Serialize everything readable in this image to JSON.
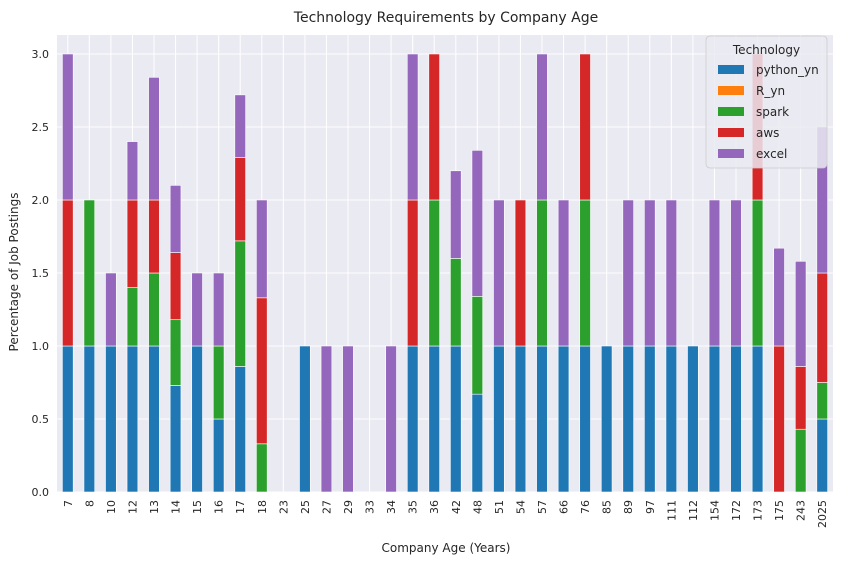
{
  "chart_data": {
    "type": "bar",
    "stacked": true,
    "title": "Technology Requirements by Company Age",
    "xlabel": "Company Age (Years)",
    "ylabel": "Percentage of Job Postings",
    "ylim": [
      0,
      3.13
    ],
    "yticks": [
      0.0,
      0.5,
      1.0,
      1.5,
      2.0,
      2.5,
      3.0
    ],
    "ytick_labels": [
      "0.0",
      "0.5",
      "1.0",
      "1.5",
      "2.0",
      "2.5",
      "3.0"
    ],
    "grid": true,
    "legend_title": "Technology",
    "legend_position": "top-right",
    "categories": [
      "7",
      "8",
      "10",
      "12",
      "13",
      "14",
      "15",
      "16",
      "17",
      "18",
      "23",
      "25",
      "27",
      "29",
      "33",
      "34",
      "35",
      "36",
      "42",
      "48",
      "51",
      "54",
      "57",
      "66",
      "76",
      "85",
      "89",
      "97",
      "111",
      "112",
      "154",
      "172",
      "173",
      "175",
      "243",
      "2025"
    ],
    "series": [
      {
        "name": "python_yn",
        "color": "#1f77b4",
        "values": [
          1,
          1,
          1,
          1,
          1,
          0.73,
          1,
          0.5,
          0.86,
          0,
          0,
          1,
          0,
          0,
          0,
          0,
          1,
          1,
          1,
          0.67,
          1,
          1,
          1,
          1,
          1,
          1,
          1,
          1,
          1,
          1,
          1,
          1,
          1,
          0,
          0,
          0.5
        ]
      },
      {
        "name": "R_yn",
        "color": "#ff7f0e",
        "values": [
          0,
          0,
          0,
          0,
          0,
          0,
          0,
          0,
          0,
          0,
          0,
          0,
          0,
          0,
          0,
          0,
          0,
          0,
          0,
          0,
          0,
          0,
          0,
          0,
          0,
          0,
          0,
          0,
          0,
          0,
          0,
          0,
          0,
          0,
          0,
          0
        ]
      },
      {
        "name": "spark",
        "color": "#2ca02c",
        "values": [
          0,
          1,
          0,
          0.4,
          0.5,
          0.45,
          0,
          0.5,
          0.86,
          0.33,
          0,
          0,
          0,
          0,
          0,
          0,
          0,
          1,
          0.6,
          0.67,
          0,
          0,
          1,
          0,
          1,
          0,
          0,
          0,
          0,
          0,
          0,
          0,
          1,
          0,
          0.43,
          0.25
        ]
      },
      {
        "name": "aws",
        "color": "#d62728",
        "values": [
          1,
          0,
          0,
          0.6,
          0.5,
          0.46,
          0,
          0,
          0.57,
          1,
          0,
          0,
          0,
          0,
          0,
          0,
          1,
          1,
          0,
          0,
          0,
          1,
          0,
          0,
          1,
          0,
          0,
          0,
          0,
          0,
          0,
          0,
          1,
          1,
          0.43,
          0.75
        ]
      },
      {
        "name": "excel",
        "color": "#9467bd",
        "values": [
          1,
          0,
          0.5,
          0.4,
          0.84,
          0.46,
          0.5,
          0.5,
          0.43,
          0.67,
          0,
          0,
          1,
          1,
          0,
          1,
          1,
          0,
          0.6,
          1,
          1,
          0,
          1,
          1,
          0,
          0,
          1,
          1,
          1,
          0,
          1,
          1,
          0,
          0.67,
          0.72,
          1
        ]
      }
    ]
  }
}
